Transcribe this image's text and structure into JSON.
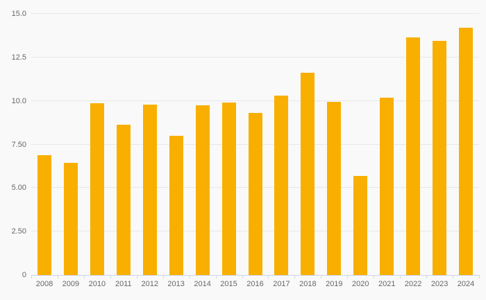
{
  "chart_data": {
    "type": "bar",
    "title": "",
    "xlabel": "",
    "ylabel": "",
    "categories": [
      "2008",
      "2009",
      "2010",
      "2011",
      "2012",
      "2013",
      "2014",
      "2015",
      "2016",
      "2017",
      "2018",
      "2019",
      "2020",
      "2021",
      "2022",
      "2023",
      "2024"
    ],
    "values": [
      6.9,
      6.45,
      9.85,
      8.65,
      9.8,
      8.0,
      9.75,
      9.9,
      9.3,
      10.3,
      11.6,
      9.95,
      5.7,
      10.2,
      13.65,
      13.45,
      14.2
    ],
    "ylim": [
      0,
      15
    ],
    "y_ticks": [
      {
        "value": 0,
        "label": "0"
      },
      {
        "value": 2.5,
        "label": "2.50"
      },
      {
        "value": 5,
        "label": "5.00"
      },
      {
        "value": 7.5,
        "label": "7.50"
      },
      {
        "value": 10,
        "label": "10.0"
      },
      {
        "value": 12.5,
        "label": "12.5"
      },
      {
        "value": 15,
        "label": "15.0"
      }
    ],
    "grid": true,
    "legend": "none"
  },
  "colors": {
    "background": "#f9f9f9",
    "bar": "#F9AF00",
    "gridline": "#e8e8e8",
    "axis_line": "#ccd6eb",
    "label_text": "#666666"
  }
}
